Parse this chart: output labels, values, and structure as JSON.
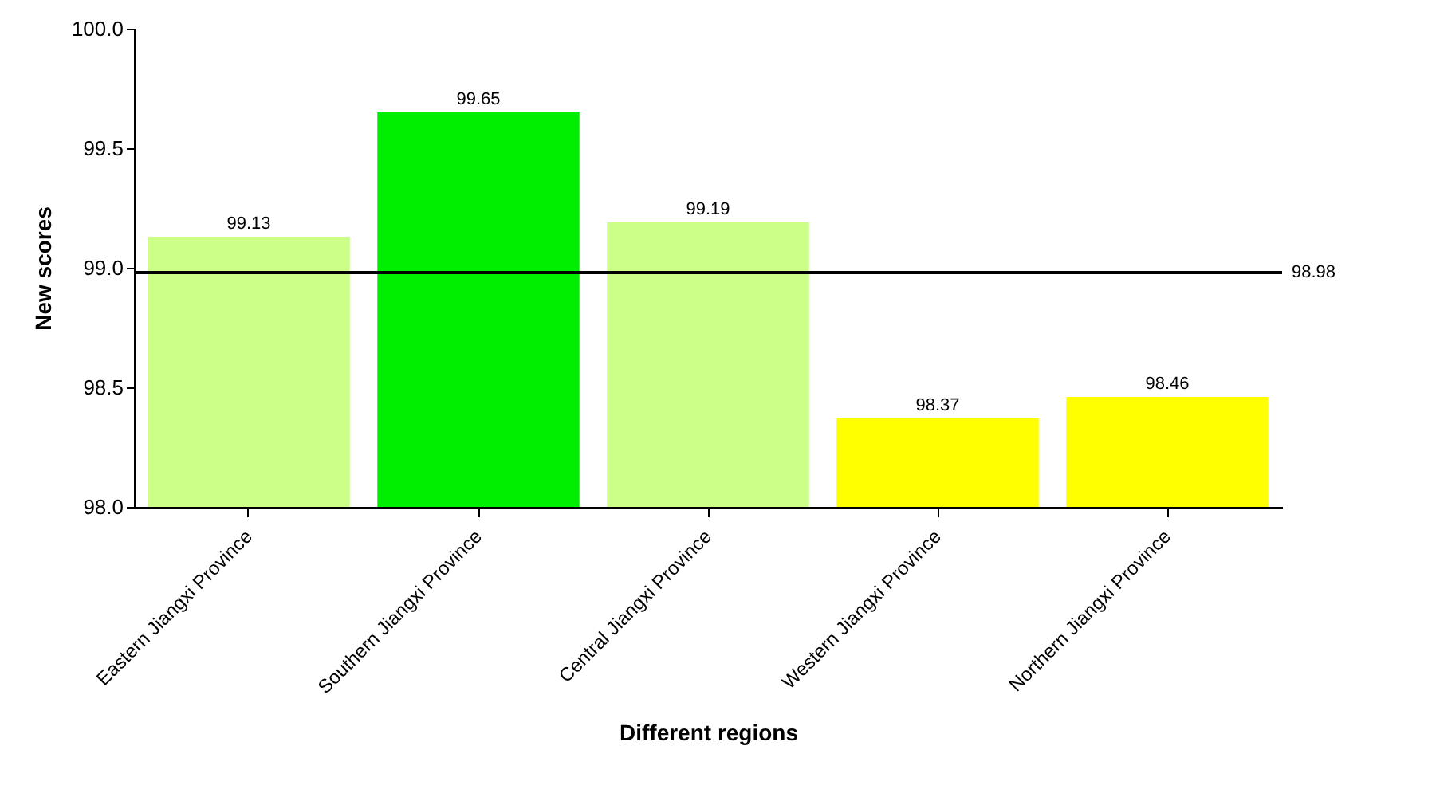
{
  "chart_data": {
    "type": "bar",
    "xlabel": "Different regions",
    "ylabel": "New scores",
    "categories": [
      "Eastern Jiangxi Province",
      "Southern Jiangxi Province",
      "Central Jiangxi Province",
      "Western Jiangxi Province",
      "Northern Jiangxi Province"
    ],
    "values": [
      99.13,
      99.65,
      99.19,
      98.37,
      98.46
    ],
    "colors": [
      "#ccff88",
      "#00ee00",
      "#ccff88",
      "#ffff00",
      "#ffff00"
    ],
    "ylim": [
      98.0,
      100.0
    ],
    "yticks": [
      "98.0",
      "98.5",
      "99.0",
      "99.5",
      "100.0"
    ],
    "ref_lines": [
      {
        "axis": "y",
        "value": 98.98,
        "label": "98.98",
        "color": "#000000"
      }
    ],
    "data_labels": true
  }
}
